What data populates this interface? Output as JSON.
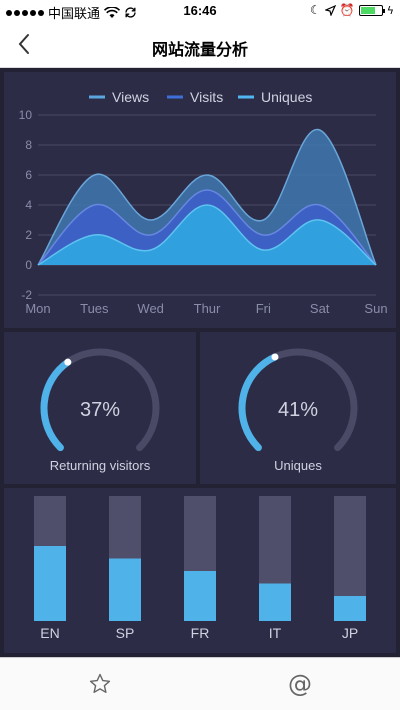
{
  "status_bar": {
    "carrier": "中国联通",
    "time": "16:46",
    "colors": {
      "battery": "#4cd964"
    }
  },
  "nav": {
    "title": "网站流量分析",
    "back_icon": "chevron-left-icon"
  },
  "colors": {
    "background": "#222234",
    "panel": "#2c2c47",
    "views": "#3a8ed6",
    "visits": "#3b6dd6",
    "uniques": "#4aaee8",
    "gauge_track": "#4a4a66",
    "gauge_fill": "#4fb2e8",
    "bar_fill": "#4fb2e8",
    "bar_track": "#4f4f6b",
    "text": "#cfd2e0",
    "axis_text": "#8a8ca8"
  },
  "chart_data": [
    {
      "type": "area",
      "legend": [
        "Views",
        "Visits",
        "Uniques"
      ],
      "legend_position": "top-center",
      "categories": [
        "Mon",
        "Tues",
        "Wed",
        "Thur",
        "Fri",
        "Sat",
        "Sun"
      ],
      "series": [
        {
          "name": "Views",
          "values": [
            0,
            6,
            3,
            6,
            3,
            9,
            0
          ]
        },
        {
          "name": "Visits",
          "values": [
            0,
            4,
            2,
            5,
            2,
            4,
            0
          ]
        },
        {
          "name": "Uniques",
          "values": [
            0,
            2,
            1,
            4,
            1,
            3,
            0
          ]
        }
      ],
      "y_ticks": [
        10,
        8,
        6,
        4,
        2,
        0,
        -2
      ],
      "ylim": [
        -2,
        10
      ],
      "grid": true
    },
    {
      "type": "gauge",
      "value": 37,
      "label": "37%",
      "title": "Returning visitors"
    },
    {
      "type": "gauge",
      "value": 41,
      "label": "41%",
      "title": "Uniques"
    },
    {
      "type": "bar",
      "categories": [
        "EN",
        "SP",
        "FR",
        "IT",
        "JP"
      ],
      "values": [
        60,
        50,
        40,
        30,
        20
      ],
      "ylim": [
        0,
        100
      ]
    }
  ],
  "tabs": [
    {
      "name": "favorites",
      "icon": "star-icon"
    },
    {
      "name": "mentions",
      "icon": "at-icon",
      "label": "@"
    }
  ]
}
